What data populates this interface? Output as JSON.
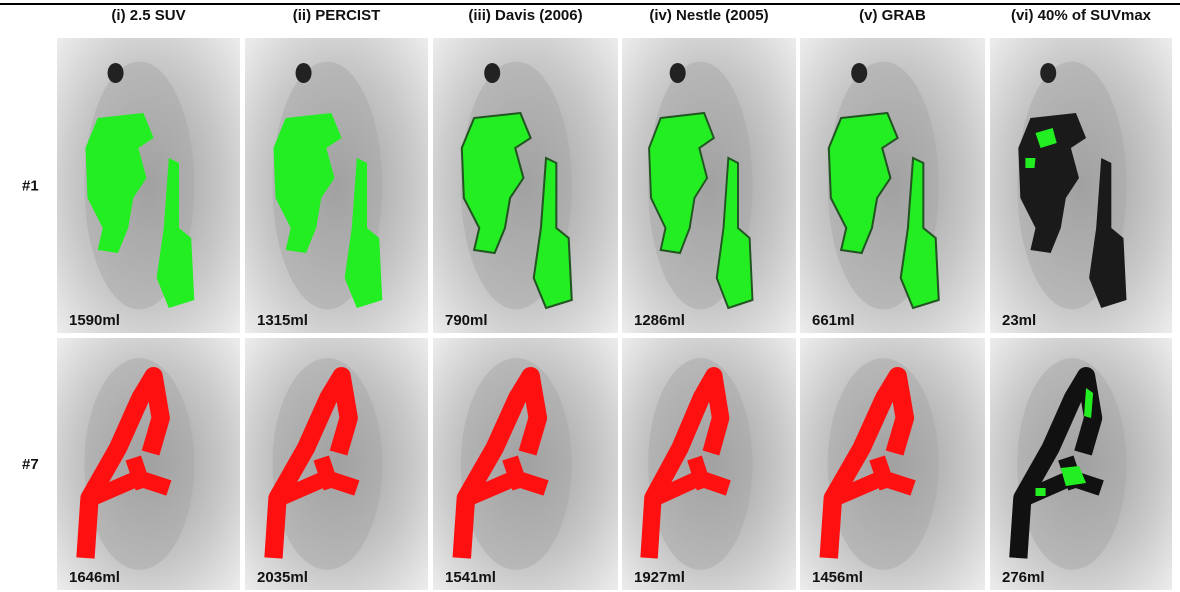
{
  "columns": [
    "(i) 2.5 SUV",
    "(ii) PERCIST",
    "(iii) Davis (2006)",
    "(iv) Nestle (2005)",
    "(v) GRAB",
    "(vi) 40% of SUVmax"
  ],
  "rows": [
    {
      "label": "#1",
      "volumes": [
        "1590ml",
        "1315ml",
        "790ml",
        "1286ml",
        "661ml",
        "23ml"
      ]
    },
    {
      "label": "#7",
      "volumes": [
        "1646ml",
        "2035ml",
        "1541ml",
        "1927ml",
        "1456ml",
        "276ml"
      ]
    }
  ]
}
